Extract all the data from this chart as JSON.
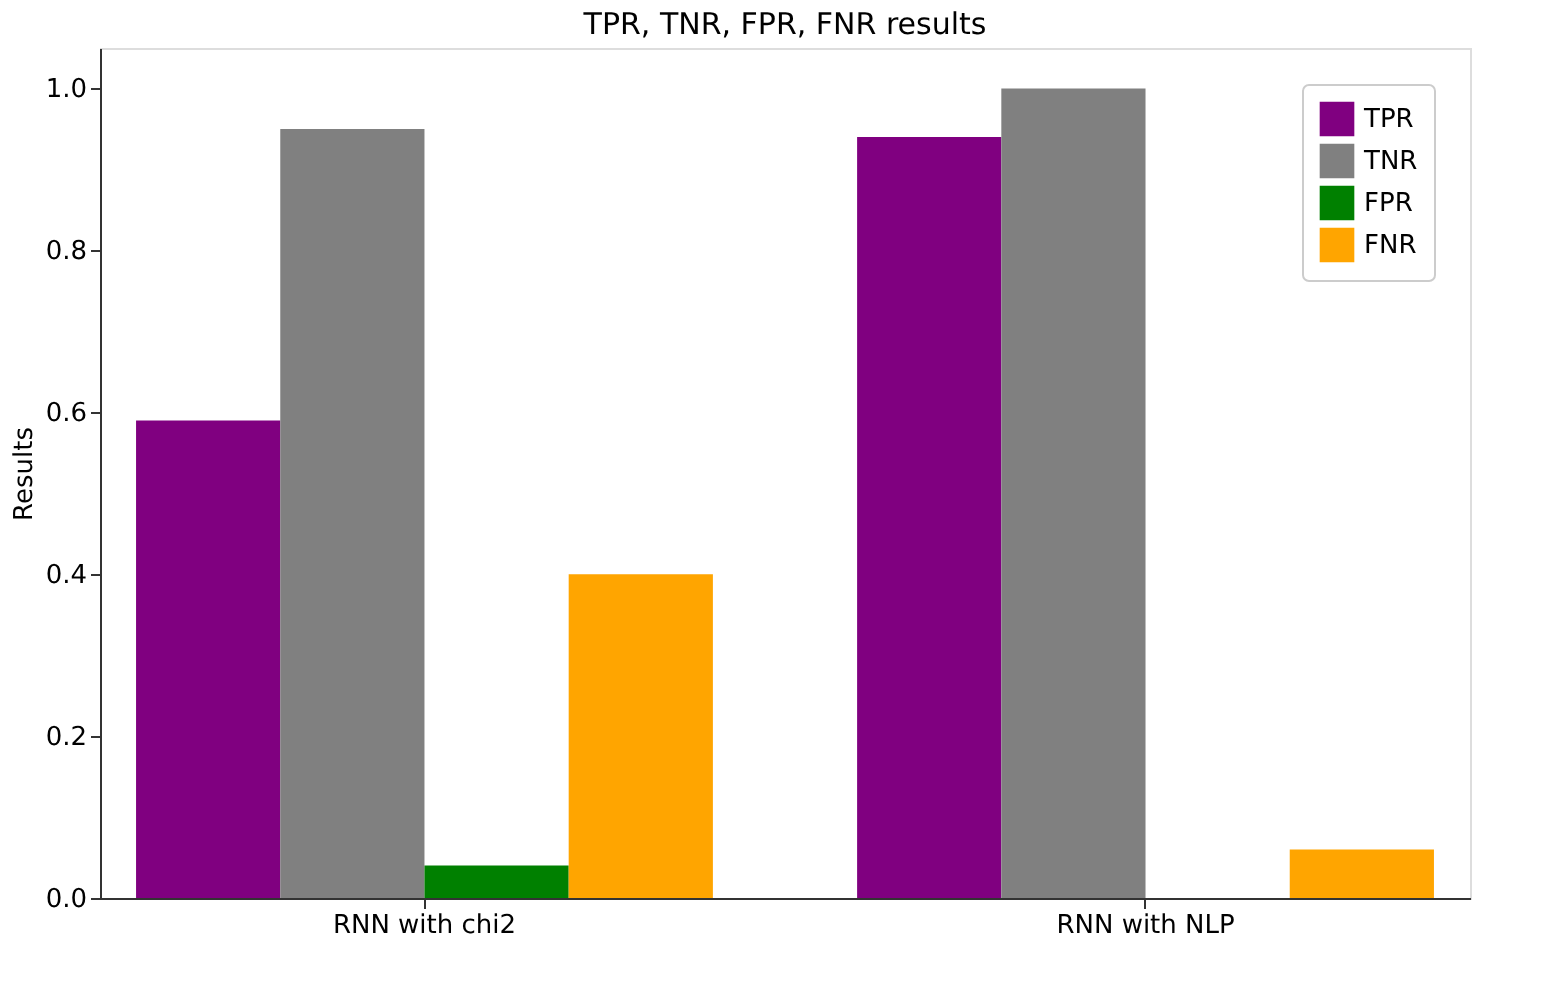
{
  "chart_data": {
    "type": "bar",
    "title": "TPR, TNR, FPR, FNR results",
    "ylabel": "Results",
    "categories": [
      "RNN with chi2",
      "RNN with NLP"
    ],
    "series": [
      {
        "name": "TPR",
        "color": "#800080",
        "values": [
          0.59,
          0.94
        ]
      },
      {
        "name": "TNR",
        "color": "#808080",
        "values": [
          0.95,
          1.0
        ]
      },
      {
        "name": "FPR",
        "color": "#008000",
        "values": [
          0.04,
          0.0
        ]
      },
      {
        "name": "FNR",
        "color": "#ffa500",
        "values": [
          0.4,
          0.06
        ]
      }
    ],
    "ylim": [
      0,
      1.05
    ],
    "yticks": [
      {
        "value": 0,
        "label": "0.0"
      },
      0.2,
      0.4,
      0.6,
      0.8,
      {
        "value": 1,
        "label": "1.0"
      }
    ],
    "grid": false,
    "legend": "top right"
  }
}
